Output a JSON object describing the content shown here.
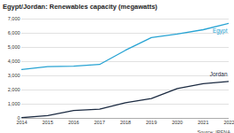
{
  "chart_data": {
    "type": "line",
    "title": "Egypt/Jordan: Renewables capacity (megawatts)",
    "caption": "Source: IRENA",
    "x": [
      2014,
      2015,
      2016,
      2017,
      2018,
      2019,
      2020,
      2021,
      2022
    ],
    "series": [
      {
        "name": "Egypt",
        "color": "#27a3d3",
        "values": [
          3450,
          3650,
          3680,
          3800,
          4800,
          5700,
          5950,
          6250,
          6700
        ]
      },
      {
        "name": "Jordan",
        "color": "#1b2a41",
        "values": [
          50,
          200,
          550,
          650,
          1100,
          1400,
          2100,
          2450,
          2600
        ]
      }
    ],
    "xlim": [
      2014,
      2022
    ],
    "xticks": [
      2014,
      2015,
      2016,
      2017,
      2018,
      2019,
      2020,
      2021,
      2022
    ],
    "ylim": [
      0,
      7000
    ],
    "yticks": [
      0,
      {
        "value": 1000,
        "label": "1,000"
      },
      {
        "value": 2000,
        "label": "2,000"
      },
      {
        "value": 3000,
        "label": "3,000"
      },
      {
        "value": 4000,
        "label": "4,000"
      },
      {
        "value": 5000,
        "label": "5,000"
      },
      {
        "value": 6000,
        "label": "6,000"
      },
      {
        "value": 7000,
        "label": "7,000"
      }
    ],
    "grid": true
  }
}
